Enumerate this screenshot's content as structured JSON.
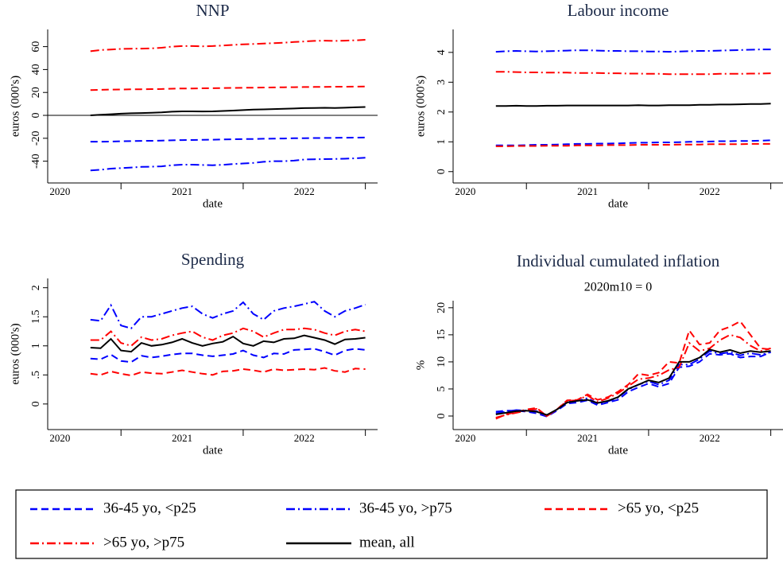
{
  "chart_data": [
    {
      "type": "line",
      "title": "NNP",
      "xlabel": "date",
      "ylabel": "euros (000's)",
      "x": [
        2020.75,
        2020.833,
        2020.917,
        2021,
        2021.083,
        2021.167,
        2021.25,
        2021.333,
        2021.417,
        2021.5,
        2021.583,
        2021.667,
        2021.75,
        2021.833,
        2021.917,
        2022,
        2022.083,
        2022.167,
        2022.25,
        2022.333,
        2022.417,
        2022.5,
        2022.583,
        2022.667,
        2022.75,
        2022.833,
        2022.917,
        2023
      ],
      "xlim": [
        2020.4,
        2023.1
      ],
      "xticks": [
        {
          "value": 2020.5,
          "label": "2020"
        },
        {
          "value": 2021.5,
          "label": "2021"
        },
        {
          "value": 2022.5,
          "label": "2022"
        }
      ],
      "xtick_marks": [
        2021,
        2022,
        2023
      ],
      "ylim": [
        -59,
        75
      ],
      "yticks": [
        -40,
        -20,
        0,
        20,
        40,
        60
      ],
      "hline": 0,
      "series": [
        {
          "name": "36-45 yo, <p25",
          "color": "#0000ff",
          "dash": "dash",
          "values": [
            -23,
            -23,
            -22.8,
            -22.6,
            -22.5,
            -22.3,
            -22.2,
            -22,
            -21.8,
            -21.6,
            -21.5,
            -21.3,
            -21.2,
            -21,
            -20.9,
            -20.7,
            -20.6,
            -20.4,
            -20.3,
            -20.2,
            -20,
            -19.9,
            -19.8,
            -19.7,
            -19.6,
            -19.5,
            -19.4,
            -19.3
          ]
        },
        {
          "name": "36-45 yo, >p75",
          "color": "#0000ff",
          "dash": "dashdot",
          "values": [
            -48,
            -47.5,
            -46.5,
            -46,
            -45.5,
            -45,
            -44.8,
            -44.5,
            -43.5,
            -43,
            -43,
            -43.3,
            -43.5,
            -43.2,
            -42.5,
            -42,
            -41.5,
            -40.5,
            -40,
            -40,
            -39.5,
            -38.5,
            -38.3,
            -38.2,
            -38,
            -37.8,
            -37.5,
            -37
          ]
        },
        {
          "name": ">65 yo, <p25",
          "color": "#ff0000",
          "dash": "dash",
          "values": [
            22,
            22.3,
            22.5,
            22.6,
            22.7,
            22.8,
            22.9,
            23,
            23.3,
            23.5,
            23.5,
            23.6,
            23.7,
            23.8,
            24,
            24.1,
            24.2,
            24.3,
            24.4,
            24.5,
            24.6,
            24.7,
            24.8,
            24.9,
            25,
            25,
            25.1,
            25.2
          ]
        },
        {
          "name": ">65 yo, >p75",
          "color": "#ff0000",
          "dash": "dashdot",
          "values": [
            56,
            57,
            57.5,
            58,
            58.2,
            58.3,
            58.5,
            59,
            60,
            60.5,
            60.5,
            60.3,
            60.5,
            61,
            61.5,
            62,
            62.3,
            62.7,
            63,
            63.5,
            64,
            64.5,
            65,
            65.2,
            65,
            65.2,
            65.5,
            66
          ]
        },
        {
          "name": "mean, all",
          "color": "#000000",
          "dash": "solid",
          "values": [
            0,
            0.5,
            1,
            1.5,
            1.8,
            2,
            2.3,
            2.6,
            3.2,
            3.5,
            3.5,
            3.4,
            3.5,
            3.8,
            4.2,
            4.6,
            5,
            5.2,
            5.5,
            5.8,
            6,
            6.3,
            6.5,
            6.6,
            6.5,
            6.7,
            7,
            7.3
          ]
        }
      ]
    },
    {
      "type": "line",
      "title": "Labour income",
      "xlabel": "date",
      "ylabel": "euros (000's)",
      "x": [
        2020.75,
        2020.833,
        2020.917,
        2021,
        2021.083,
        2021.167,
        2021.25,
        2021.333,
        2021.417,
        2021.5,
        2021.583,
        2021.667,
        2021.75,
        2021.833,
        2021.917,
        2022,
        2022.083,
        2022.167,
        2022.25,
        2022.333,
        2022.417,
        2022.5,
        2022.583,
        2022.667,
        2022.75,
        2022.833,
        2022.917,
        2023
      ],
      "xlim": [
        2020.4,
        2023.1
      ],
      "xticks": [
        {
          "value": 2020.5,
          "label": "2020"
        },
        {
          "value": 2021.5,
          "label": "2021"
        },
        {
          "value": 2022.5,
          "label": "2022"
        }
      ],
      "xtick_marks": [
        2021,
        2022,
        2023
      ],
      "ylim": [
        -0.38,
        4.77
      ],
      "yticks": [
        0,
        1,
        2,
        3,
        4
      ],
      "series": [
        {
          "color": "#0000ff",
          "dash": "dash",
          "values": [
            0.88,
            0.88,
            0.88,
            0.89,
            0.9,
            0.9,
            0.91,
            0.92,
            0.93,
            0.93,
            0.94,
            0.94,
            0.95,
            0.96,
            0.97,
            0.97,
            0.98,
            0.98,
            0.99,
            1.0,
            1.0,
            1.01,
            1.02,
            1.02,
            1.03,
            1.03,
            1.04,
            1.05
          ]
        },
        {
          "color": "#0000ff",
          "dash": "dashdot",
          "values": [
            4.02,
            4.04,
            4.05,
            4.04,
            4.03,
            4.04,
            4.05,
            4.06,
            4.07,
            4.07,
            4.06,
            4.05,
            4.05,
            4.04,
            4.04,
            4.03,
            4.03,
            4.02,
            4.03,
            4.04,
            4.05,
            4.05,
            4.06,
            4.07,
            4.08,
            4.09,
            4.1,
            4.1
          ]
        },
        {
          "color": "#ff0000",
          "dash": "dash",
          "values": [
            0.85,
            0.85,
            0.86,
            0.86,
            0.86,
            0.87,
            0.87,
            0.87,
            0.88,
            0.88,
            0.88,
            0.89,
            0.89,
            0.89,
            0.9,
            0.9,
            0.9,
            0.9,
            0.91,
            0.91,
            0.91,
            0.92,
            0.92,
            0.92,
            0.92,
            0.93,
            0.93,
            0.93
          ]
        },
        {
          "color": "#ff0000",
          "dash": "dashdot",
          "values": [
            3.35,
            3.35,
            3.34,
            3.33,
            3.33,
            3.32,
            3.32,
            3.32,
            3.31,
            3.31,
            3.31,
            3.3,
            3.3,
            3.29,
            3.29,
            3.28,
            3.28,
            3.27,
            3.27,
            3.27,
            3.27,
            3.27,
            3.28,
            3.28,
            3.28,
            3.29,
            3.29,
            3.3
          ]
        },
        {
          "color": "#000000",
          "dash": "solid",
          "values": [
            2.2,
            2.2,
            2.21,
            2.2,
            2.2,
            2.21,
            2.21,
            2.22,
            2.22,
            2.22,
            2.22,
            2.22,
            2.22,
            2.22,
            2.23,
            2.22,
            2.22,
            2.23,
            2.23,
            2.23,
            2.24,
            2.24,
            2.25,
            2.25,
            2.26,
            2.27,
            2.27,
            2.28
          ]
        }
      ]
    },
    {
      "type": "line",
      "title": "Spending",
      "xlabel": "date",
      "ylabel": "euros (000's)",
      "x": [
        2020.75,
        2020.833,
        2020.917,
        2021,
        2021.083,
        2021.167,
        2021.25,
        2021.333,
        2021.417,
        2021.5,
        2021.583,
        2021.667,
        2021.75,
        2021.833,
        2021.917,
        2022,
        2022.083,
        2022.167,
        2022.25,
        2022.333,
        2022.417,
        2022.5,
        2022.583,
        2022.667,
        2022.75,
        2022.833,
        2022.917,
        2023
      ],
      "xlim": [
        2020.4,
        2023.1
      ],
      "xticks": [
        {
          "value": 2020.5,
          "label": "2020"
        },
        {
          "value": 2021.5,
          "label": "2021"
        },
        {
          "value": 2022.5,
          "label": "2022"
        }
      ],
      "xtick_marks": [
        2021,
        2022,
        2023
      ],
      "ylim": [
        -0.44,
        2.16
      ],
      "yticks": [
        0,
        {
          "value": 0.5,
          "label": ".5"
        },
        1,
        1.5,
        2
      ],
      "series": [
        {
          "color": "#0000ff",
          "dash": "dash",
          "values": [
            0.78,
            0.77,
            0.85,
            0.74,
            0.72,
            0.83,
            0.8,
            0.82,
            0.85,
            0.87,
            0.87,
            0.84,
            0.82,
            0.84,
            0.86,
            0.92,
            0.84,
            0.8,
            0.87,
            0.86,
            0.93,
            0.94,
            0.95,
            0.9,
            0.84,
            0.92,
            0.95,
            0.93
          ]
        },
        {
          "color": "#0000ff",
          "dash": "dashdot",
          "values": [
            1.45,
            1.43,
            1.7,
            1.35,
            1.3,
            1.5,
            1.5,
            1.55,
            1.6,
            1.65,
            1.68,
            1.55,
            1.48,
            1.55,
            1.6,
            1.75,
            1.55,
            1.45,
            1.6,
            1.65,
            1.68,
            1.72,
            1.76,
            1.6,
            1.5,
            1.6,
            1.65,
            1.71
          ]
        },
        {
          "color": "#ff0000",
          "dash": "dash",
          "values": [
            0.52,
            0.5,
            0.56,
            0.52,
            0.49,
            0.55,
            0.53,
            0.52,
            0.55,
            0.58,
            0.55,
            0.52,
            0.5,
            0.56,
            0.57,
            0.6,
            0.58,
            0.55,
            0.6,
            0.58,
            0.59,
            0.6,
            0.59,
            0.62,
            0.57,
            0.55,
            0.61,
            0.6
          ]
        },
        {
          "color": "#ff0000",
          "dash": "dashdot",
          "values": [
            1.1,
            1.1,
            1.25,
            1.05,
            1.0,
            1.15,
            1.1,
            1.12,
            1.18,
            1.22,
            1.25,
            1.15,
            1.1,
            1.18,
            1.22,
            1.3,
            1.25,
            1.15,
            1.22,
            1.28,
            1.28,
            1.3,
            1.28,
            1.22,
            1.18,
            1.25,
            1.28,
            1.25
          ]
        },
        {
          "color": "#000000",
          "dash": "solid",
          "values": [
            0.97,
            0.96,
            1.12,
            0.92,
            0.9,
            1.05,
            1.0,
            1.02,
            1.06,
            1.12,
            1.05,
            1.0,
            1.04,
            1.07,
            1.16,
            1.04,
            1.0,
            1.08,
            1.06,
            1.12,
            1.13,
            1.18,
            1.14,
            1.1,
            1.03,
            1.11,
            1.12,
            1.14
          ]
        }
      ]
    },
    {
      "type": "line",
      "title": "Individual cumulated inflation",
      "subtitle": "2020m10 = 0",
      "xlabel": "date",
      "ylabel": "%",
      "x": [
        2020.75,
        2020.833,
        2020.917,
        2021,
        2021.083,
        2021.167,
        2021.25,
        2021.333,
        2021.417,
        2021.5,
        2021.583,
        2021.667,
        2021.75,
        2021.833,
        2021.917,
        2022,
        2022.083,
        2022.167,
        2022.25,
        2022.333,
        2022.417,
        2022.5,
        2022.583,
        2022.667,
        2022.75,
        2022.833,
        2022.917,
        2023
      ],
      "xlim": [
        2020.4,
        2023.1
      ],
      "xticks": [
        {
          "value": 2020.5,
          "label": "2020"
        },
        {
          "value": 2021.5,
          "label": "2021"
        },
        {
          "value": 2022.5,
          "label": "2022"
        }
      ],
      "xtick_marks": [
        2021,
        2022,
        2023
      ],
      "ylim": [
        -2.5,
        21.3
      ],
      "yticks": [
        0,
        5,
        10,
        15,
        20
      ],
      "series": [
        {
          "color": "#0000ff",
          "dash": "dash",
          "values": [
            0.8,
            1.0,
            1.0,
            0.8,
            0.5,
            -0.1,
            1.0,
            2.3,
            2.5,
            2.9,
            2.0,
            2.5,
            3.0,
            4.5,
            5.3,
            6.0,
            5.4,
            6.0,
            9.0,
            9.2,
            10.0,
            11.5,
            11.3,
            11.5,
            10.8,
            11.0,
            11.0,
            11.8
          ]
        },
        {
          "color": "#0000ff",
          "dash": "dashdot",
          "values": [
            0.5,
            0.8,
            1.1,
            1.0,
            0.9,
            0.1,
            1.2,
            2.6,
            2.8,
            3.3,
            2.3,
            2.7,
            3.4,
            4.9,
            5.8,
            6.4,
            5.8,
            6.6,
            9.5,
            9.5,
            10.5,
            12.0,
            11.5,
            11.8,
            11.2,
            11.6,
            11.3,
            11.8
          ]
        },
        {
          "color": "#ff0000",
          "dash": "dash",
          "values": [
            -0.5,
            0.3,
            0.7,
            1.2,
            1.5,
            0.0,
            1.2,
            2.9,
            3.0,
            4.0,
            3.0,
            3.5,
            4.5,
            5.8,
            7.8,
            7.5,
            8.0,
            10.0,
            9.8,
            15.8,
            13.2,
            13.5,
            15.8,
            16.5,
            17.5,
            15.0,
            12.5,
            12.3
          ]
        },
        {
          "color": "#ff0000",
          "dash": "dashdot",
          "values": [
            -0.3,
            0.2,
            0.6,
            1.0,
            1.3,
            0.0,
            1.2,
            2.8,
            2.9,
            3.8,
            2.6,
            3.3,
            4.2,
            5.5,
            6.8,
            7.0,
            7.5,
            8.5,
            9.0,
            13.5,
            12.0,
            12.5,
            14.0,
            15.0,
            14.5,
            13.0,
            12.0,
            12.5
          ]
        },
        {
          "color": "#000000",
          "dash": "solid",
          "values": [
            0.3,
            0.6,
            0.9,
            1.0,
            0.8,
            0.2,
            1.2,
            2.5,
            2.8,
            3.0,
            2.4,
            2.8,
            3.5,
            5.0,
            5.8,
            6.6,
            6.2,
            7.0,
            10.0,
            10.0,
            10.8,
            12.3,
            11.8,
            12.2,
            11.6,
            12.0,
            11.8,
            12.0
          ]
        }
      ]
    }
  ]
}
